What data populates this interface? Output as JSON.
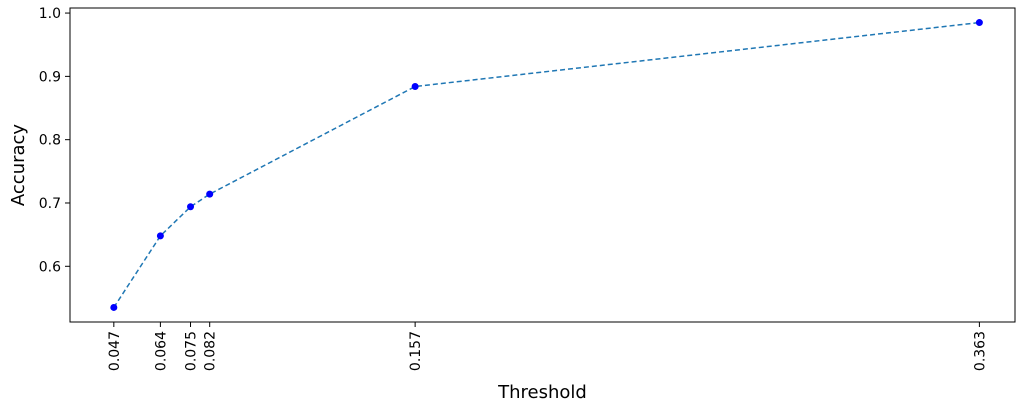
{
  "chart_data": {
    "type": "line",
    "title": "",
    "xlabel": "Threshold",
    "ylabel": "Accuracy",
    "x_tick_labels": [
      "0.047",
      "0.064",
      "0.075",
      "0.082",
      "0.157",
      "0.363"
    ],
    "y_tick_labels": [
      "0.6",
      "0.7",
      "0.8",
      "0.9",
      "1.0"
    ],
    "xlim": [
      0.031,
      0.376
    ],
    "ylim": [
      0.512,
      1.008
    ],
    "grid": false,
    "series": [
      {
        "x": [
          0.047,
          0.064,
          0.075,
          0.082,
          0.157,
          0.363
        ],
        "y": [
          0.535,
          0.648,
          0.694,
          0.714,
          0.884,
          0.985
        ],
        "line_color": "#1f77b4",
        "marker_color": "#0000ff",
        "line_style": "dashed"
      }
    ]
  }
}
